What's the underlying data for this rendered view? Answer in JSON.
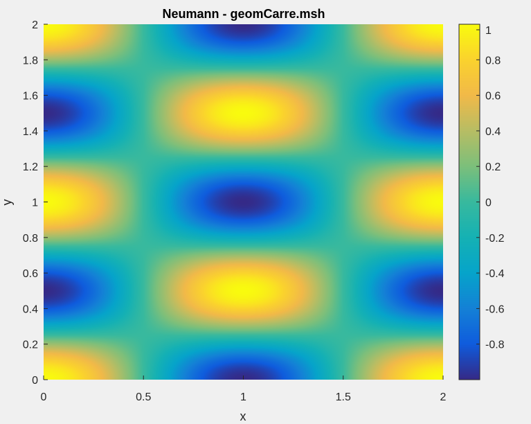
{
  "chart_data": {
    "type": "heatmap",
    "title": "Neumann - geomCarre.msh",
    "xlabel": "x",
    "ylabel": "y",
    "xlim": [
      0,
      2
    ],
    "ylim": [
      0,
      2
    ],
    "x_ticks": [
      "0",
      "0.5",
      "1",
      "1.5",
      "2"
    ],
    "y_ticks": [
      "0",
      "0.2",
      "0.4",
      "0.6",
      "0.8",
      "1",
      "1.2",
      "1.4",
      "1.6",
      "1.8",
      "2"
    ],
    "field": "cos(pi*x)*cos(2*pi*y)",
    "grid": false,
    "colormap": "parula",
    "colorbar": {
      "range": [
        -1,
        1
      ],
      "ticks": [
        "1",
        "0.8",
        "0.6",
        "0.4",
        "0.2",
        "0",
        "-0.2",
        "-0.4",
        "-0.6",
        "-0.8"
      ]
    }
  }
}
